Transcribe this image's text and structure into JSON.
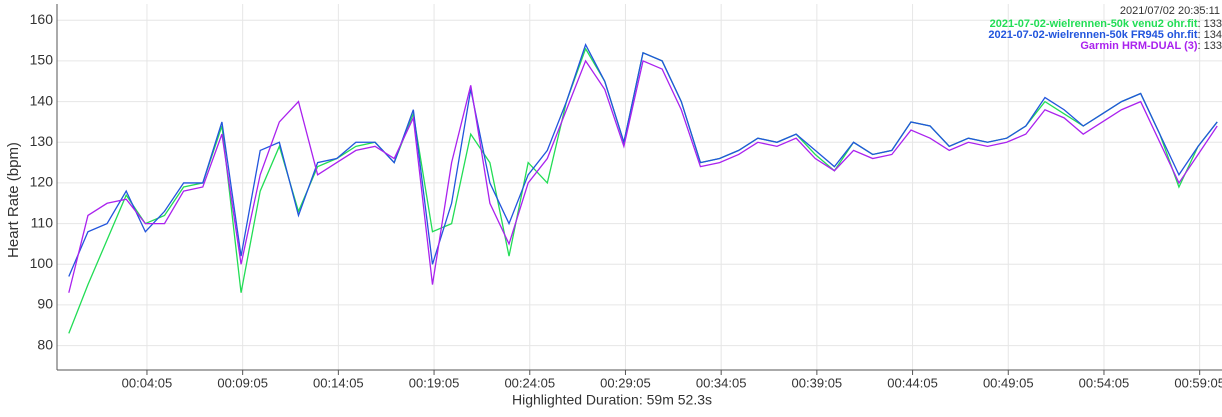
{
  "chart_data": {
    "type": "line",
    "y_label": "Heart Rate (bpm)",
    "x_label": "Highlighted Duration: 59m 52.3s",
    "cursor_time": "2021/07/02 20:35:11",
    "cursor_values": [
      133,
      134,
      133
    ],
    "x": [
      0,
      60,
      120,
      180,
      240,
      300,
      360,
      420,
      480,
      540,
      600,
      660,
      720,
      780,
      840,
      900,
      960,
      1020,
      1080,
      1140,
      1200,
      1260,
      1320,
      1380,
      1440,
      1500,
      1560,
      1620,
      1680,
      1740,
      1800,
      1860,
      1920,
      1980,
      2040,
      2100,
      2160,
      2220,
      2280,
      2340,
      2400,
      2460,
      2520,
      2580,
      2640,
      2700,
      2760,
      2820,
      2880,
      2940,
      3000,
      3060,
      3120,
      3180,
      3240,
      3300,
      3360,
      3420,
      3480,
      3540,
      3600
    ],
    "series": [
      {
        "name": "2021-07-02-wielrennen-50k venu2 ohr.fit",
        "color": "#22dd55",
        "values": [
          83,
          95,
          106,
          117,
          110,
          112,
          119,
          120,
          134,
          93,
          118,
          129,
          113,
          124,
          126,
          129,
          130,
          125,
          137,
          108,
          110,
          132,
          125,
          102,
          125,
          120,
          140,
          153,
          145,
          130,
          152,
          150,
          140,
          125,
          126,
          128,
          131,
          130,
          132,
          127,
          123,
          130,
          127,
          128,
          135,
          134,
          129,
          131,
          130,
          131,
          134,
          140,
          137,
          134,
          137,
          140,
          142,
          132,
          119,
          129,
          135
        ]
      },
      {
        "name": "2021-07-02-wielrennen-50k FR945 ohr.fit",
        "color": "#2255dd",
        "values": [
          97,
          108,
          110,
          118,
          108,
          113,
          120,
          120,
          135,
          102,
          128,
          130,
          112,
          125,
          126,
          130,
          130,
          125,
          138,
          100,
          115,
          143,
          120,
          110,
          122,
          128,
          140,
          154,
          145,
          130,
          152,
          150,
          140,
          125,
          126,
          128,
          131,
          130,
          132,
          128,
          124,
          130,
          127,
          128,
          135,
          134,
          129,
          131,
          130,
          131,
          134,
          141,
          138,
          134,
          137,
          140,
          142,
          132,
          122,
          129,
          135
        ]
      },
      {
        "name": "Garmin HRM-DUAL (3)",
        "color": "#aa22ee",
        "values": [
          93,
          112,
          115,
          116,
          110,
          110,
          118,
          119,
          132,
          100,
          122,
          135,
          140,
          122,
          125,
          128,
          129,
          126,
          136,
          95,
          125,
          144,
          115,
          105,
          120,
          126,
          138,
          150,
          143,
          129,
          150,
          148,
          138,
          124,
          125,
          127,
          130,
          129,
          131,
          126,
          123,
          128,
          126,
          127,
          133,
          131,
          128,
          130,
          129,
          130,
          132,
          138,
          136,
          132,
          135,
          138,
          140,
          130,
          120,
          127,
          134
        ]
      }
    ],
    "xlim": [
      -37,
      3615
    ],
    "xticks": [
      {
        "value": 245,
        "label": "00:04:05"
      },
      {
        "value": 545,
        "label": "00:09:05"
      },
      {
        "value": 845,
        "label": "00:14:05"
      },
      {
        "value": 1145,
        "label": "00:19:05"
      },
      {
        "value": 1445,
        "label": "00:24:05"
      },
      {
        "value": 1745,
        "label": "00:29:05"
      },
      {
        "value": 2045,
        "label": "00:34:05"
      },
      {
        "value": 2345,
        "label": "00:39:05"
      },
      {
        "value": 2645,
        "label": "00:44:05"
      },
      {
        "value": 2945,
        "label": "00:49:05"
      },
      {
        "value": 3245,
        "label": "00:54:05"
      },
      {
        "value": 3545,
        "label": "00:59:05"
      }
    ],
    "ylim": [
      74,
      164
    ],
    "yticks": [
      80,
      90,
      100,
      110,
      120,
      130,
      140,
      150,
      160
    ],
    "grid": true
  }
}
